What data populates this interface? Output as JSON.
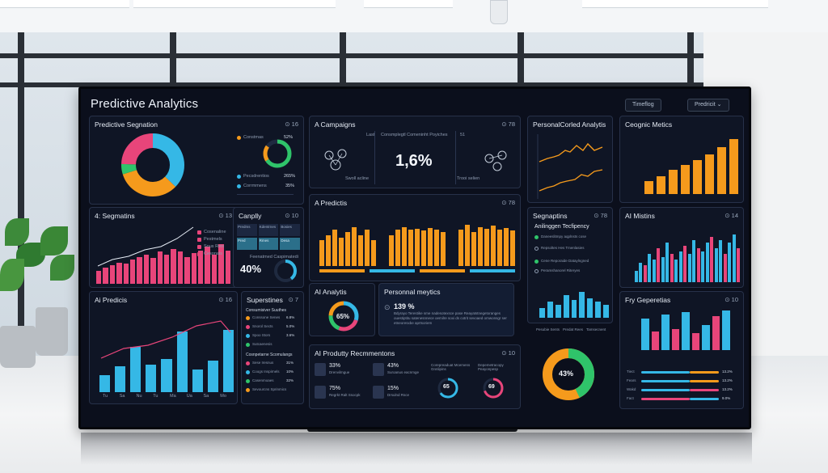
{
  "app_title": "Predictive Analytics",
  "toolbar": {
    "btn1": "Timeflog",
    "btn2": "Predricit"
  },
  "panels": {
    "seg1": {
      "title": "Predictive Segnation",
      "ctrl": "⊙ 16",
      "legend": [
        "Constmas",
        "Pecsdrentios",
        "Corrmmens"
      ],
      "values": [
        "52%",
        "265%",
        "35%"
      ]
    },
    "campaigns": {
      "title": "A Campaigns",
      "ctrl": "⊙ 78",
      "label_left": "Last",
      "label_mid": "Consmplegtl Comeninht Poyiches",
      "label_right": "51",
      "big_value": "1,6%",
      "foot_left": "Swoll acline",
      "foot_right": "Trooi selien"
    },
    "personalized": {
      "title": "PersonalCorled Analytis"
    },
    "ceognic": {
      "title": "Ceognic Metics"
    },
    "seg2": {
      "title": "4: Segmatins",
      "ctrl": "⊙ 13",
      "legend": [
        "Cosenaline",
        "Pestmels",
        "Sous Reis",
        "Cesonals"
      ]
    },
    "canplly": {
      "title": "Canplly",
      "ctrl": "⊙ 10",
      "pct": "40%",
      "pct_label": "Feenatmed Caspimatedi",
      "cells": [
        "Predms",
        "Kdentrnes",
        "Bosies",
        "Pred",
        "Rmes",
        "Desa"
      ]
    },
    "apredictis": {
      "title": "A Predictis",
      "ctrl": "⊙ 78"
    },
    "segnaptins": {
      "title": "Segnaptins",
      "ctrl": "⊙ 78",
      "sub": "Anilinggen Tecfipency",
      "items": [
        "Daneeslitmpy aqplnsts cose",
        "Repsoltes Hes Tmenlasies",
        "Cene Reporaide Dataylngned",
        "Peramshanorel Riteryes"
      ]
    },
    "aimistins": {
      "title": "AI Mistins",
      "ctrl": "⊙ 14"
    },
    "aipredicis": {
      "title": "Ai Predicis",
      "ctrl": "⊙ 16",
      "xlabels": [
        "Tu",
        "Sa",
        "Nu",
        "Tu",
        "Ma",
        "Ua",
        "Sa",
        "Mo"
      ]
    },
    "superstines": {
      "title": "Superstines",
      "ctrl": "⊙ 7",
      "sub": "Consumisiver Suuthes",
      "items": [
        "Conssone Senes",
        "Snorol Sects",
        "Spoo Stors",
        "Sutcaenesis"
      ],
      "vals": [
        "6.8%",
        "5.0%",
        "3.6%",
        ""
      ],
      "sub2": "Cosnpetarne Scomulangs",
      "items2": [
        "Sese Iresnus",
        "Coogs Inspirnels",
        "Casenmoaes",
        "Sevourcns Sprinmics"
      ],
      "vals2": [
        "31%",
        "10%",
        "32%",
        ""
      ]
    },
    "aianalytis": {
      "title": "AI Analytis",
      "pct": "65%"
    },
    "personal": {
      "title": "Personnal meytics",
      "value": "139 %",
      "desc": "Bdyrayo Terestike sme nadesotexsce pase Reayatstnegetoranges ouestiptitu satenesnnece oemilre soxi ds cotrit sevoaed omwonsgr ser etneoresxbe aprtsoriem"
    },
    "aiproduct": {
      "title": "AI Produtty Recmmentons",
      "ctrl": "⊙ 10",
      "items": [
        {
          "v": "33%",
          "t": "Drenvilmgue"
        },
        {
          "v": "43%",
          "t": "Suroanus eacnmge"
        },
        {
          "v": "75%",
          "t": "Regrkt Ralt Ssocpk"
        },
        {
          "v": "15%",
          "t": "Drsulnd Rsce"
        }
      ],
      "donut_a": {
        "label": "Corepreaduat Mcemens Gnnlipins",
        "value": "65"
      },
      "donut_b": {
        "label": "Depemetracopy Peayonpesp",
        "value": "69"
      }
    },
    "segbottom": {
      "legend": [
        "Pesubie Sents",
        "Predat Rees",
        "Tamsecnent"
      ]
    },
    "bigdonut": {
      "value": "43%"
    },
    "fygeperetis": {
      "title": "Fry Geperetias",
      "ctrl": "⊙ 10",
      "rows": [
        {
          "l": "Tiect",
          "v": "13.2%"
        },
        {
          "l": "Fears",
          "v": "13.2%"
        },
        {
          "l": "Wakd",
          "v": "13.2%"
        },
        {
          "l": "Fact",
          "v": "9.0%"
        }
      ]
    }
  },
  "colors": {
    "pink": "#e8457a",
    "blue": "#35b8e6",
    "orange": "#f59a1c",
    "green": "#2fc46a",
    "navy": "#0f1525"
  }
}
